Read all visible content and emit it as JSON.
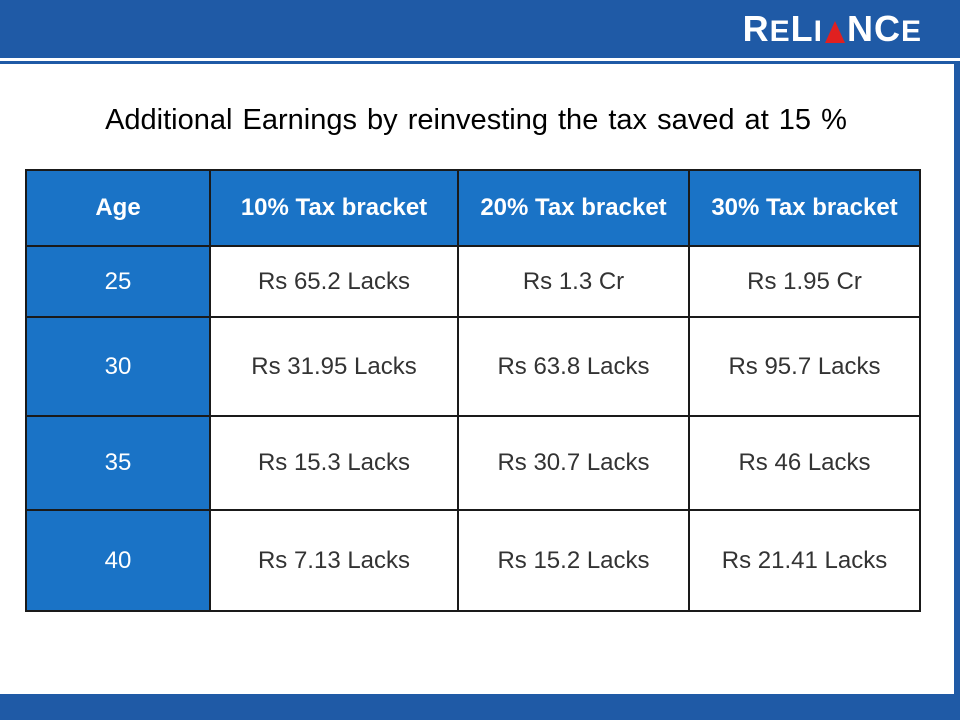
{
  "brand": {
    "logo_text": "RELIANCE",
    "primary_color": "#1f5aa6",
    "table_header_color": "#1a73c6",
    "accent_color": "#e02020"
  },
  "slide": {
    "title": "Additional Earnings by reinvesting the tax saved at 15 %"
  },
  "table": {
    "headers": [
      "Age",
      "10% Tax bracket",
      "20% Tax bracket",
      "30% Tax bracket"
    ],
    "rows": [
      {
        "age": "25",
        "c10": "Rs 65.2 Lacks",
        "c20": "Rs 1.3 Cr",
        "c30": "Rs 1.95 Cr"
      },
      {
        "age": "30",
        "c10": "Rs 31.95 Lacks",
        "c20": "Rs 63.8 Lacks",
        "c30": "Rs 95.7 Lacks"
      },
      {
        "age": "35",
        "c10": "Rs 15.3 Lacks",
        "c20": "Rs 30.7 Lacks",
        "c30": "Rs 46 Lacks"
      },
      {
        "age": "40",
        "c10": "Rs 7.13 Lacks",
        "c20": "Rs 15.2 Lacks",
        "c30": "Rs 21.41 Lacks"
      }
    ]
  }
}
